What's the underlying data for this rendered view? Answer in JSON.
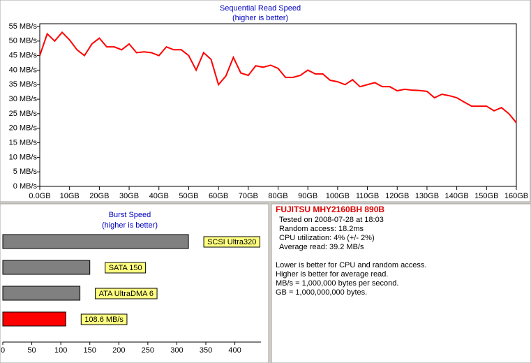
{
  "chart_data": [
    {
      "type": "line",
      "title": "Sequential Read Speed",
      "subtitle": "(higher is better)",
      "color": "#ff0000",
      "x": [
        0,
        2.5,
        5,
        7.5,
        10,
        12.5,
        15,
        17.5,
        20,
        22.5,
        25,
        27.5,
        30,
        32.5,
        35,
        37.5,
        40,
        42.5,
        45,
        47.5,
        50,
        52.5,
        55,
        57.5,
        60,
        62.5,
        65,
        67.5,
        70,
        72.5,
        75,
        77.5,
        80,
        82.5,
        85,
        87.5,
        90,
        92.5,
        95,
        97.5,
        100,
        102.5,
        105,
        107.5,
        110,
        112.5,
        115,
        117.5,
        120,
        122.5,
        125,
        127.5,
        130,
        132.5,
        135,
        137.5,
        140,
        142.5,
        145,
        147.5,
        150,
        152.5,
        155,
        157.5,
        160
      ],
      "y": [
        45,
        52.5,
        50,
        53,
        50.4,
        47,
        45,
        49,
        51,
        48,
        48,
        47,
        49,
        46,
        46.3,
        46,
        45,
        48,
        47,
        47,
        45,
        40,
        46,
        43.7,
        35,
        38,
        44.4,
        39,
        38.2,
        41.5,
        41,
        41.7,
        40.6,
        37.5,
        37.5,
        38.2,
        40,
        38.7,
        38.7,
        36.5,
        36,
        35,
        36.7,
        34.3,
        35,
        35.7,
        34.3,
        34.3,
        32.9,
        33.4,
        33.1,
        33.0,
        32.7,
        30.5,
        31.7,
        31.2,
        30.5,
        29,
        27.6,
        27.6,
        27.6,
        26,
        27.1,
        25,
        21.9
      ],
      "xlim": [
        0,
        160
      ],
      "xticks": [
        {
          "value": 0,
          "label": "0.0GB"
        },
        {
          "value": 10,
          "label": "10GB"
        },
        {
          "value": 20,
          "label": "20GB"
        },
        {
          "value": 30,
          "label": "30GB"
        },
        {
          "value": 40,
          "label": "40GB"
        },
        {
          "value": 50,
          "label": "50GB"
        },
        {
          "value": 60,
          "label": "60GB"
        },
        {
          "value": 70,
          "label": "70GB"
        },
        {
          "value": 80,
          "label": "80GB"
        },
        {
          "value": 90,
          "label": "90GB"
        },
        {
          "value": 100,
          "label": "100GB"
        },
        {
          "value": 110,
          "label": "110GB"
        },
        {
          "value": 120,
          "label": "120GB"
        },
        {
          "value": 130,
          "label": "130GB"
        },
        {
          "value": 140,
          "label": "140GB"
        },
        {
          "value": 150,
          "label": "150GB"
        },
        {
          "value": 160,
          "label": "160GB"
        }
      ],
      "ylim": [
        0,
        55
      ],
      "yticks": [
        {
          "value": 0,
          "label": "0 MB/s"
        },
        {
          "value": 5,
          "label": "5 MB/s"
        },
        {
          "value": 10,
          "label": "10 MB/s"
        },
        {
          "value": 15,
          "label": "15 MB/s"
        },
        {
          "value": 20,
          "label": "20 MB/s"
        },
        {
          "value": 25,
          "label": "25 MB/s"
        },
        {
          "value": 30,
          "label": "30 MB/s"
        },
        {
          "value": 35,
          "label": "35 MB/s"
        },
        {
          "value": 40,
          "label": "40 MB/s"
        },
        {
          "value": 45,
          "label": "45 MB/s"
        },
        {
          "value": 50,
          "label": "50 MB/s"
        },
        {
          "value": 55,
          "label": "55 MB/s"
        }
      ]
    },
    {
      "type": "hbar",
      "title": "Burst Speed",
      "subtitle": "(higher is better)",
      "categories": [
        "SCSI Ultra320",
        "SATA 150",
        "ATA UltraDMA 6",
        null
      ],
      "values": [
        320,
        150,
        133,
        108.6
      ],
      "value_labels": [
        null,
        null,
        null,
        "108.6 MB/s"
      ],
      "colors": [
        "#808080",
        "#808080",
        "#808080",
        "#ff0000"
      ],
      "xlim": [
        0,
        445
      ],
      "xticks": [
        0,
        50,
        100,
        150,
        200,
        250,
        300,
        350,
        400
      ]
    }
  ],
  "info": {
    "title": "FUJITSU MHY2160BH 890B",
    "lines": [
      "Tested on 2008-07-28 at 18:03",
      "Random access: 18.2ms",
      "CPU utilization: 4% (+/- 2%)",
      "Average read: 39.2 MB/s"
    ],
    "notes": [
      "Lower is better for CPU and random access.",
      "Higher is better for average read.",
      "MB/s = 1,000,000 bytes per second.",
      "GB = 1,000,000,000 bytes."
    ]
  }
}
